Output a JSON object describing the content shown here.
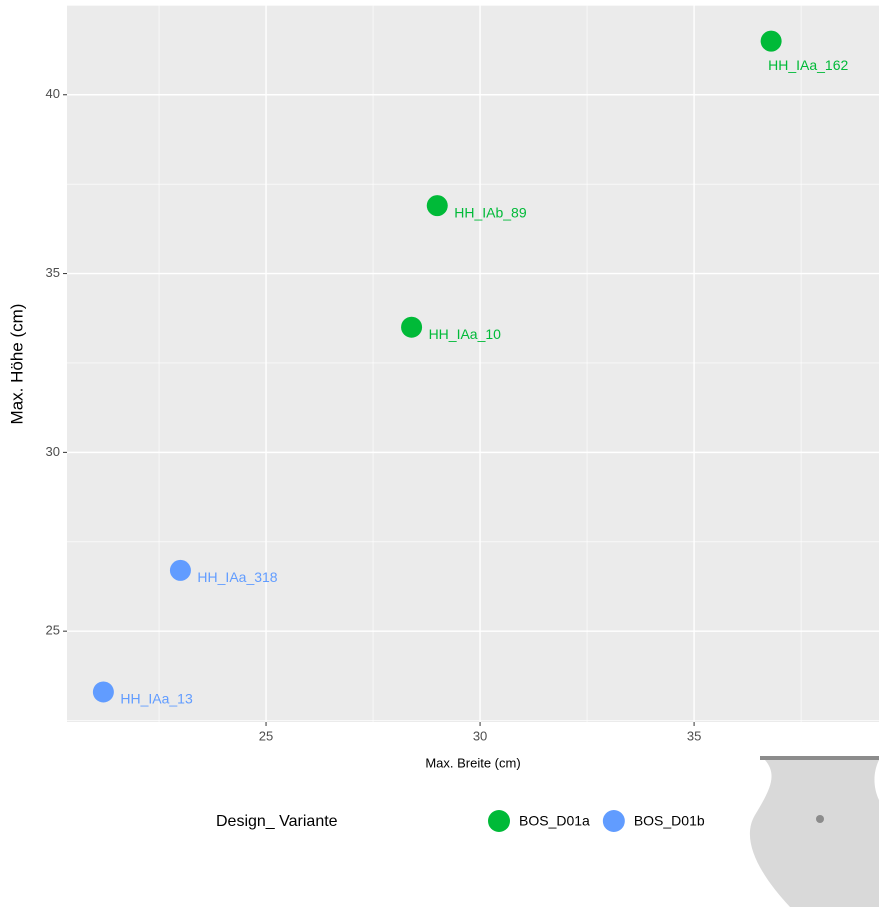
{
  "chart_data": {
    "type": "scatter",
    "x_label": "Max. Breite (cm)",
    "y_label": "Max. Höhe (cm)",
    "xlim": [
      20.35,
      39.32
    ],
    "ylim": [
      22.46,
      42.51
    ],
    "xticks": [
      25,
      30,
      35
    ],
    "yticks": [
      25,
      30,
      35,
      40
    ],
    "xminor": [
      22.5,
      27.5,
      32.5,
      37.5
    ],
    "yminor": [
      22.5,
      27.5,
      32.5,
      37.5,
      42.5
    ],
    "grid": true,
    "legend_position": "bottom",
    "legend_title": "Design_ Variante",
    "series": [
      {
        "name": "BOS_D01a",
        "color": "#00ba38",
        "x": [
          36.8,
          29.0,
          28.4
        ],
        "values": [
          41.5,
          36.9,
          33.5
        ],
        "labels": [
          "HH_IAa_162",
          "HH_IAb_89",
          "HH_IAa_10"
        ]
      },
      {
        "name": "BOS_D01b",
        "color": "#619cff",
        "x": [
          23.0,
          21.2
        ],
        "values": [
          26.7,
          23.3
        ],
        "labels": [
          "HH_IAa_318",
          "HH_IAa_13"
        ]
      }
    ]
  }
}
